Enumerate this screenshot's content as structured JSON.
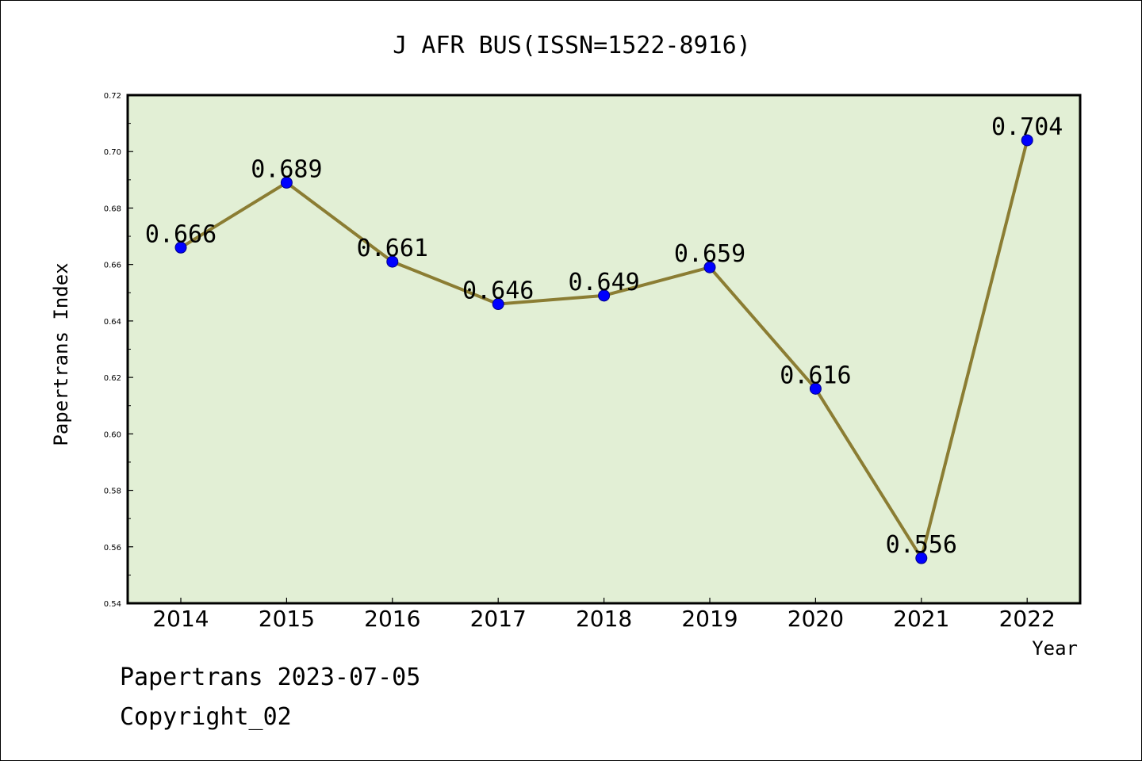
{
  "chart_data": {
    "type": "line",
    "title": "J AFR BUS(ISSN=1522-8916)",
    "xlabel": "Year",
    "ylabel": "Papertrans Index",
    "categories": [
      "2014",
      "2015",
      "2016",
      "2017",
      "2018",
      "2019",
      "2020",
      "2021",
      "2022"
    ],
    "series": [
      {
        "values": [
          0.666,
          0.689,
          0.661,
          0.646,
          0.649,
          0.659,
          0.616,
          0.556,
          0.704
        ],
        "labels": [
          "0.666",
          "0.689",
          "0.661",
          "0.646",
          "0.649",
          "0.659",
          "0.616",
          "0.556",
          "0.704"
        ]
      }
    ],
    "ylim": [
      0.54,
      0.72
    ],
    "yticks": [
      0.54,
      0.56,
      0.58,
      0.6,
      0.62,
      0.64,
      0.66,
      0.68,
      0.7,
      0.72
    ],
    "ytick_labels": [
      "0.54",
      "0.56",
      "0.58",
      "0.60",
      "0.62",
      "0.64",
      "0.66",
      "0.68",
      "0.70",
      "0.72"
    ],
    "grid": false,
    "colors": {
      "plot_background": "#e2efd5",
      "line": "#8b7d33",
      "marker_fill": "#0000ff",
      "marker_edge": "#000088"
    }
  },
  "footer": {
    "line1": "Papertrans 2023-07-05",
    "line2": "Copyright_02"
  }
}
